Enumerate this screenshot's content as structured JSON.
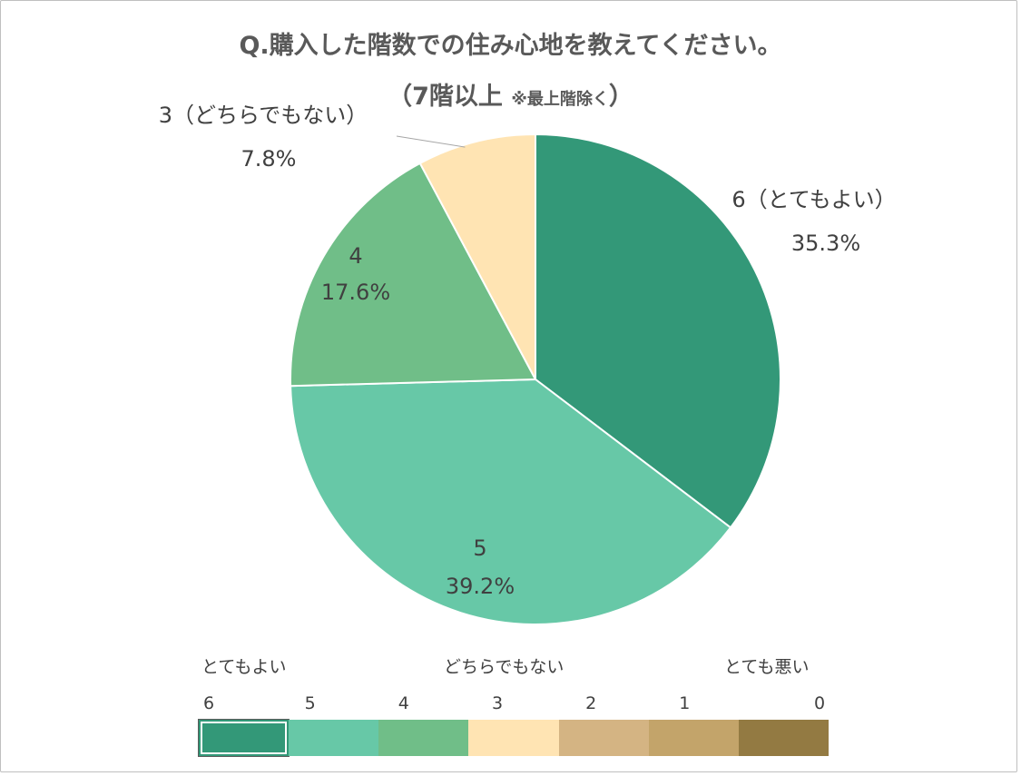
{
  "chart_data": {
    "type": "pie",
    "title": "Q.購入した階数での住み心地を教えてください。",
    "subtitle_main": "（7階以上",
    "subtitle_note": "※最上階除く",
    "subtitle_close": "）",
    "slices": [
      {
        "label": "6（とてもよい）",
        "name": "6（とてもよい）",
        "value": 35.3,
        "pct": "35.3%",
        "color": "#339878"
      },
      {
        "label": "5",
        "name": "5",
        "value": 39.2,
        "pct": "39.2%",
        "color": "#67c8a7"
      },
      {
        "label": "4",
        "name": "4",
        "value": 17.6,
        "pct": "17.6%",
        "color": "#70be88"
      },
      {
        "label": "3（どちらでもない）",
        "name": "3（どちらでもない）",
        "value": 7.8,
        "pct": "7.8%",
        "color": "#ffe4b3"
      }
    ],
    "legend": {
      "captions": [
        "とてもよい",
        "どちらでもない",
        "とても悪い"
      ],
      "scale": [
        {
          "label": "6",
          "color": "#339878"
        },
        {
          "label": "5",
          "color": "#67c8a7"
        },
        {
          "label": "4",
          "color": "#70be88"
        },
        {
          "label": "3",
          "color": "#ffe4b3"
        },
        {
          "label": "2",
          "color": "#d4b483"
        },
        {
          "label": "1",
          "color": "#c3a46a"
        },
        {
          "label": "0",
          "color": "#937a42"
        }
      ]
    }
  }
}
